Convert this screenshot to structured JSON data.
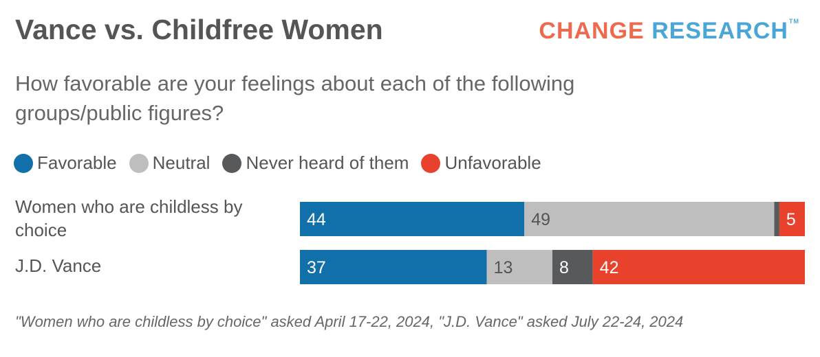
{
  "header": {
    "title": "Vance vs. Childfree Women",
    "logo_part1": "CHANGE",
    "logo_part2": "RESEARCH",
    "logo_tm": "TM"
  },
  "subtitle": "How favorable are your feelings about each of the following groups/public figures?",
  "footnote": "\"Women who are childless by choice\" asked April 17-22, 2024, \"J.D. Vance\" asked July 22-24, 2024",
  "colors": {
    "favorable": "#1170aa",
    "neutral": "#bebebe",
    "never_heard": "#58595b",
    "unfavorable": "#e8422d"
  },
  "chart_data": {
    "type": "bar",
    "orientation": "horizontal",
    "stacked": true,
    "title": "Vance vs. Childfree Women",
    "categories": [
      "Women who are childless by choice",
      "J.D. Vance"
    ],
    "series": [
      {
        "name": "Favorable",
        "color": "#1170aa",
        "values": [
          44,
          37
        ]
      },
      {
        "name": "Neutral",
        "color": "#bebebe",
        "values": [
          49,
          13
        ]
      },
      {
        "name": "Never heard of them",
        "color": "#58595b",
        "values": [
          1,
          8
        ]
      },
      {
        "name": "Unfavorable",
        "color": "#e8422d",
        "values": [
          5,
          42
        ]
      }
    ],
    "data_labels": [
      [
        "44",
        "49",
        "",
        "5"
      ],
      [
        "37",
        "13",
        "8",
        "42"
      ]
    ],
    "xlim": [
      0,
      100
    ],
    "legend_position": "top-left",
    "grid": false
  }
}
